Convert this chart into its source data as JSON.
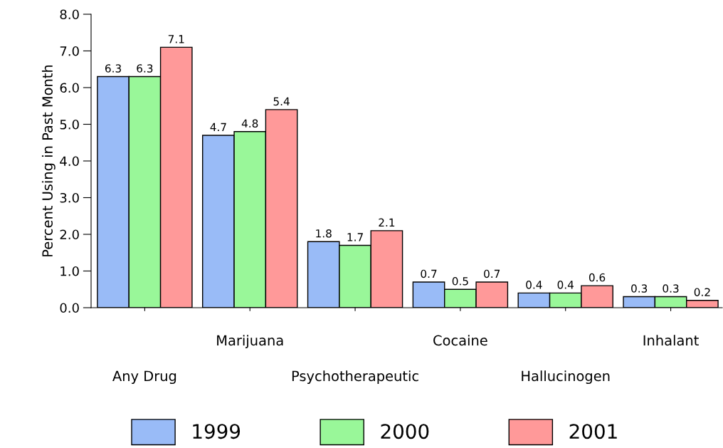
{
  "chart_data": {
    "type": "bar",
    "ylabel": "Percent Using in Past Month",
    "categories": [
      "Any Drug",
      "Marijuana",
      "Psychotherapeutic",
      "Cocaine",
      "Hallucinogen",
      "Inhalant"
    ],
    "series": [
      {
        "name": "1999",
        "color": "#99bbf7",
        "values": [
          6.3,
          4.7,
          1.8,
          0.7,
          0.4,
          0.3
        ]
      },
      {
        "name": "2000",
        "color": "#99f799",
        "values": [
          6.3,
          4.8,
          1.7,
          0.5,
          0.4,
          0.3
        ]
      },
      {
        "name": "2001",
        "color": "#ff9999",
        "values": [
          7.1,
          5.4,
          2.1,
          0.7,
          0.6,
          0.2
        ]
      }
    ],
    "ylim": [
      0,
      8
    ],
    "yticks": [
      {
        "value": 0,
        "label": "0.0"
      },
      {
        "value": 1,
        "label": "1.0"
      },
      {
        "value": 2,
        "label": "2.0"
      },
      {
        "value": 3,
        "label": "3.0"
      },
      {
        "value": 4,
        "label": "4.0"
      },
      {
        "value": 5,
        "label": "5.0"
      },
      {
        "value": 6,
        "label": "6.0"
      },
      {
        "value": 7,
        "label": "7.0"
      },
      {
        "value": 8,
        "label": "8.0"
      }
    ],
    "data_labels": true,
    "legend": "bottom",
    "grid": false
  }
}
